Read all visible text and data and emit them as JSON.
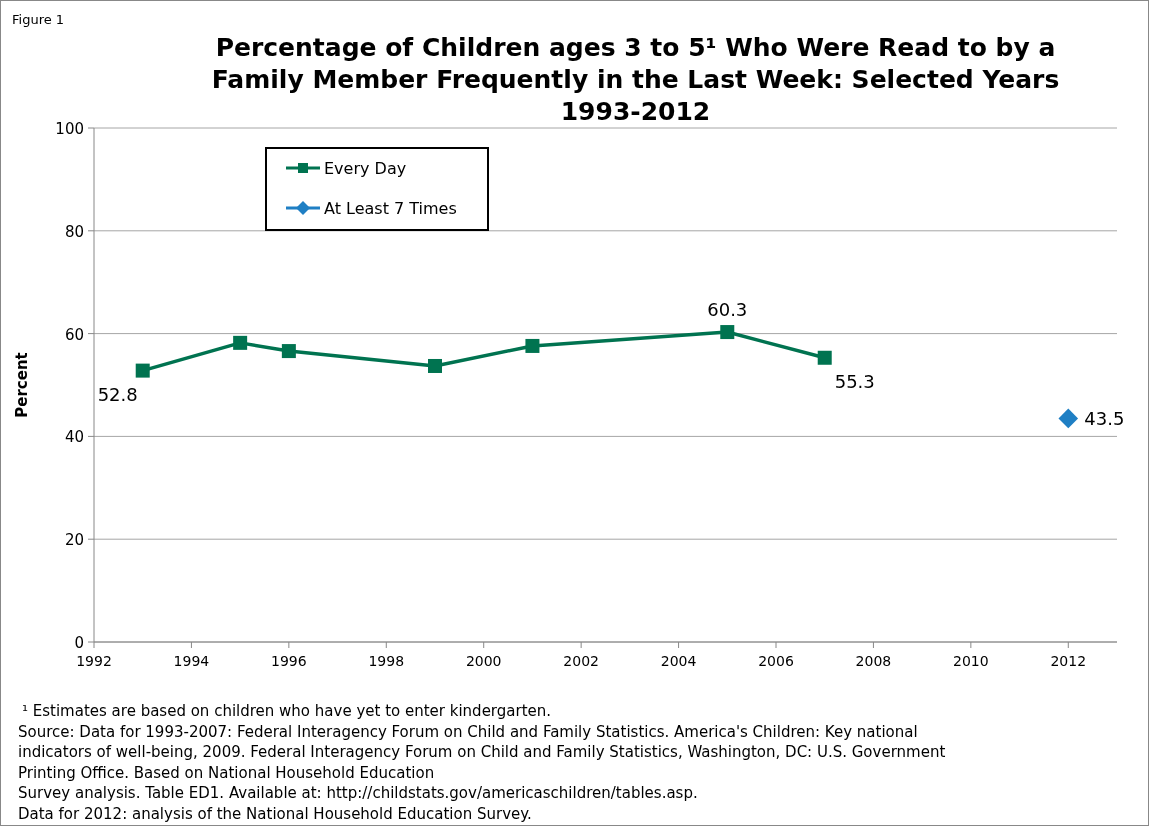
{
  "chart_data": {
    "type": "line",
    "title": "Percentage of Children ages 3 to 5¹ Who Were Read to by a Family Member Frequently in the Last Week: Selected Years 1993-2012",
    "ylabel": "Percent",
    "series": [
      {
        "name": "Every Day",
        "color": "#007350",
        "marker": "square",
        "x": [
          1993,
          1995,
          1996,
          1999,
          2001,
          2005,
          2007
        ],
        "values": [
          52.8,
          58.2,
          56.6,
          53.7,
          57.6,
          60.3,
          55.3
        ],
        "value_labels": [
          "52.8",
          null,
          null,
          null,
          null,
          "60.3",
          "55.3"
        ]
      },
      {
        "name": "At Least 7 Times",
        "color": "#1f7fc4",
        "marker": "diamond",
        "x": [
          2012
        ],
        "values": [
          43.5
        ],
        "value_labels": [
          "43.5"
        ]
      }
    ],
    "xlim": [
      1992,
      2013
    ],
    "xticks": [
      1992,
      1994,
      1996,
      1998,
      2000,
      2002,
      2004,
      2006,
      2008,
      2010,
      2012
    ],
    "ylim": [
      0,
      100
    ],
    "yticks": [
      0,
      20,
      40,
      60,
      80,
      100
    ],
    "grid": "y",
    "legend": "top left",
    "line_style": "solid",
    "annotations": [
      "Figure 1",
      "¹ Estimates are based on children who have yet to enter kindergarten.",
      "Source: Data for 1993-2007:  Federal Interagency Forum on Child and Family Statistics.  America's Children: Key national",
      "indicators of well-being, 2009. Federal Interagency Forum on Child and Family Statistics, Washington, DC: U.S. Government",
      "Printing Office.  Based on National Household Education",
      "Survey analysis. Table ED1.  Available at: http://childstats.gov/americaschildren/tables.asp.",
      "Data for 2012: analysis of the National Household Education Survey."
    ]
  }
}
